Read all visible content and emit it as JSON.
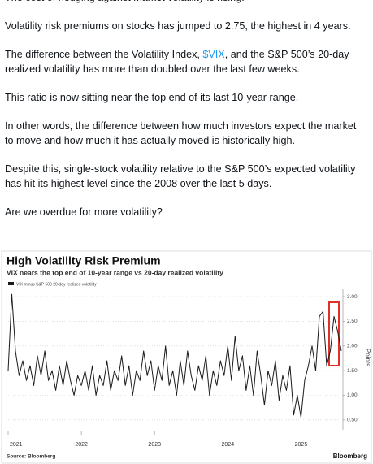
{
  "post": {
    "paragraphs": [
      {
        "text": "The cost of hedging against market volatility is rising."
      },
      {
        "text": "Volatility risk premiums on stocks has jumped to 2.75, the highest in 4 years."
      },
      {
        "before": "The difference between the Volatility Index, ",
        "link": "$VIX",
        "after": ", and the S&P 500’s 20-day realized volatility has more than doubled over the last few weeks."
      },
      {
        "text": "This ratio is now sitting near the top end of its last 10-year range."
      },
      {
        "text": "In other words, the difference between how much investors expect the market to move and how much it has actually moved is historically high."
      },
      {
        "text": "Despite this, single-stock volatility relative to the S&P 500’s expected volatility has hit its highest level since the 2008 over the last 5 days."
      },
      {
        "text": "Are we overdue for more volatility?"
      }
    ]
  },
  "chart_data": {
    "type": "line",
    "title": "High Volatility Risk Premium",
    "subtitle": "VIX nears the top end of 10-year range vs 20-day realized volatility",
    "source": "Source: Bloomberg",
    "brand": "Bloomberg",
    "y_label": "Points",
    "x": [
      2021.0,
      2021.05,
      2021.1,
      2021.15,
      2021.2,
      2021.25,
      2021.3,
      2021.35,
      2021.4,
      2021.45,
      2021.5,
      2021.55,
      2021.6,
      2021.65,
      2021.7,
      2021.75,
      2021.8,
      2021.85,
      2021.9,
      2021.95,
      2022.0,
      2022.05,
      2022.1,
      2022.15,
      2022.2,
      2022.25,
      2022.3,
      2022.35,
      2022.4,
      2022.45,
      2022.5,
      2022.55,
      2022.6,
      2022.65,
      2022.7,
      2022.75,
      2022.8,
      2022.85,
      2022.9,
      2022.95,
      2023.0,
      2023.05,
      2023.1,
      2023.15,
      2023.2,
      2023.25,
      2023.3,
      2023.35,
      2023.4,
      2023.45,
      2023.5,
      2023.55,
      2023.6,
      2023.65,
      2023.7,
      2023.75,
      2023.8,
      2023.85,
      2023.9,
      2023.95,
      2024.0,
      2024.05,
      2024.1,
      2024.15,
      2024.2,
      2024.25,
      2024.3,
      2024.35,
      2024.4,
      2024.45,
      2024.5,
      2024.55,
      2024.6,
      2024.65,
      2024.7,
      2024.75,
      2024.8,
      2024.85,
      2024.9,
      2024.95,
      2025.0,
      2025.05,
      2025.1,
      2025.15,
      2025.2,
      2025.25,
      2025.3,
      2025.35,
      2025.4,
      2025.45,
      2025.5,
      2025.55
    ],
    "series": [
      {
        "name": "VIX minus S&P 500 20-day realized volatility",
        "color": "#1a1a1a",
        "values": [
          1.5,
          3.05,
          1.9,
          1.4,
          1.7,
          1.3,
          1.6,
          1.2,
          1.8,
          1.4,
          1.9,
          1.3,
          1.5,
          1.1,
          1.6,
          1.2,
          1.7,
          1.3,
          1.0,
          1.4,
          1.2,
          1.5,
          1.1,
          1.6,
          1.0,
          1.4,
          1.2,
          1.7,
          1.1,
          1.5,
          1.3,
          1.8,
          1.2,
          1.6,
          1.0,
          1.5,
          1.3,
          1.9,
          1.4,
          1.7,
          1.1,
          1.6,
          1.3,
          2.0,
          1.2,
          1.5,
          1.0,
          1.7,
          1.2,
          1.9,
          1.4,
          1.1,
          1.6,
          1.3,
          1.8,
          1.0,
          1.5,
          1.2,
          1.7,
          1.4,
          2.0,
          1.3,
          2.2,
          1.5,
          1.8,
          1.1,
          1.6,
          1.0,
          1.9,
          1.4,
          0.8,
          1.5,
          1.2,
          1.7,
          0.9,
          1.4,
          1.1,
          1.6,
          0.6,
          1.0,
          0.55,
          1.3,
          1.6,
          2.0,
          1.5,
          2.6,
          2.7,
          1.6,
          1.9,
          2.6,
          2.3,
          1.9
        ]
      }
    ],
    "xlim": [
      2021,
      2025.55
    ],
    "xticks": [
      2021,
      2022,
      2023,
      2024,
      2025
    ],
    "ylim": [
      0.3,
      3.15
    ],
    "yticks": [
      {
        "value": 0.5,
        "label": "0.50"
      },
      {
        "value": 1,
        "label": "1.00"
      },
      {
        "value": 1.5,
        "label": "1.50"
      },
      {
        "value": 2,
        "label": "2.00"
      },
      {
        "value": 2.5,
        "label": "2.50"
      },
      {
        "value": 3,
        "label": "3.00"
      }
    ],
    "grid": true
  }
}
